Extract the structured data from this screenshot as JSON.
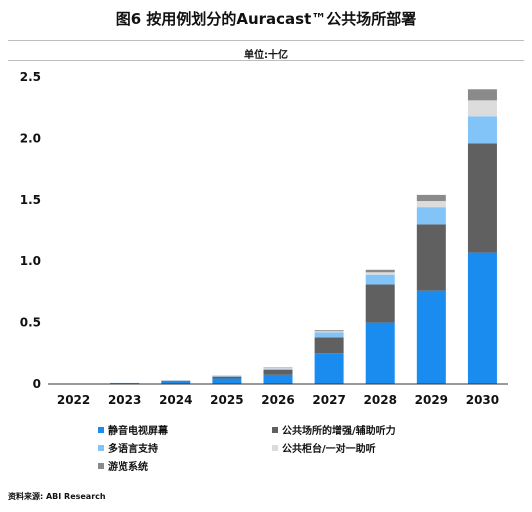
{
  "header": {
    "title": "图6 按用例划分的Auracast™公共场所部署",
    "subtitle": "单位:十亿"
  },
  "footer": {
    "source": "资料来源: ABI Research"
  },
  "chart_data": {
    "type": "bar",
    "stacked": true,
    "categories": [
      "2022",
      "2023",
      "2024",
      "2025",
      "2026",
      "2027",
      "2028",
      "2029",
      "2030"
    ],
    "ylim": [
      0,
      2.5
    ],
    "yticks": [
      "0",
      "0.5",
      "1.0",
      "1.5",
      "2.0",
      "2.5"
    ],
    "grid": false,
    "legend_position": "bottom-left",
    "series": [
      {
        "name": "静音电视屏幕",
        "color": "#1a8cf0",
        "values": [
          0.003,
          0.005,
          0.018,
          0.045,
          0.075,
          0.25,
          0.5,
          0.76,
          1.07
        ]
      },
      {
        "name": "公共场所的增强/辅助听力",
        "color": "#606060",
        "values": [
          0.001,
          0.003,
          0.008,
          0.015,
          0.04,
          0.13,
          0.31,
          0.54,
          0.89
        ]
      },
      {
        "name": "多语言支持",
        "color": "#82c3f8",
        "values": [
          0.0,
          0.001,
          0.002,
          0.004,
          0.01,
          0.04,
          0.08,
          0.14,
          0.22
        ]
      },
      {
        "name": "公共柜台/一对一助听",
        "color": "#dcdcdc",
        "values": [
          0.0,
          0.0,
          0.001,
          0.002,
          0.005,
          0.01,
          0.02,
          0.05,
          0.13
        ]
      },
      {
        "name": "游览系统",
        "color": "#8a8a8a",
        "values": [
          0.0,
          0.0,
          0.001,
          0.002,
          0.004,
          0.008,
          0.02,
          0.05,
          0.09
        ]
      }
    ]
  }
}
